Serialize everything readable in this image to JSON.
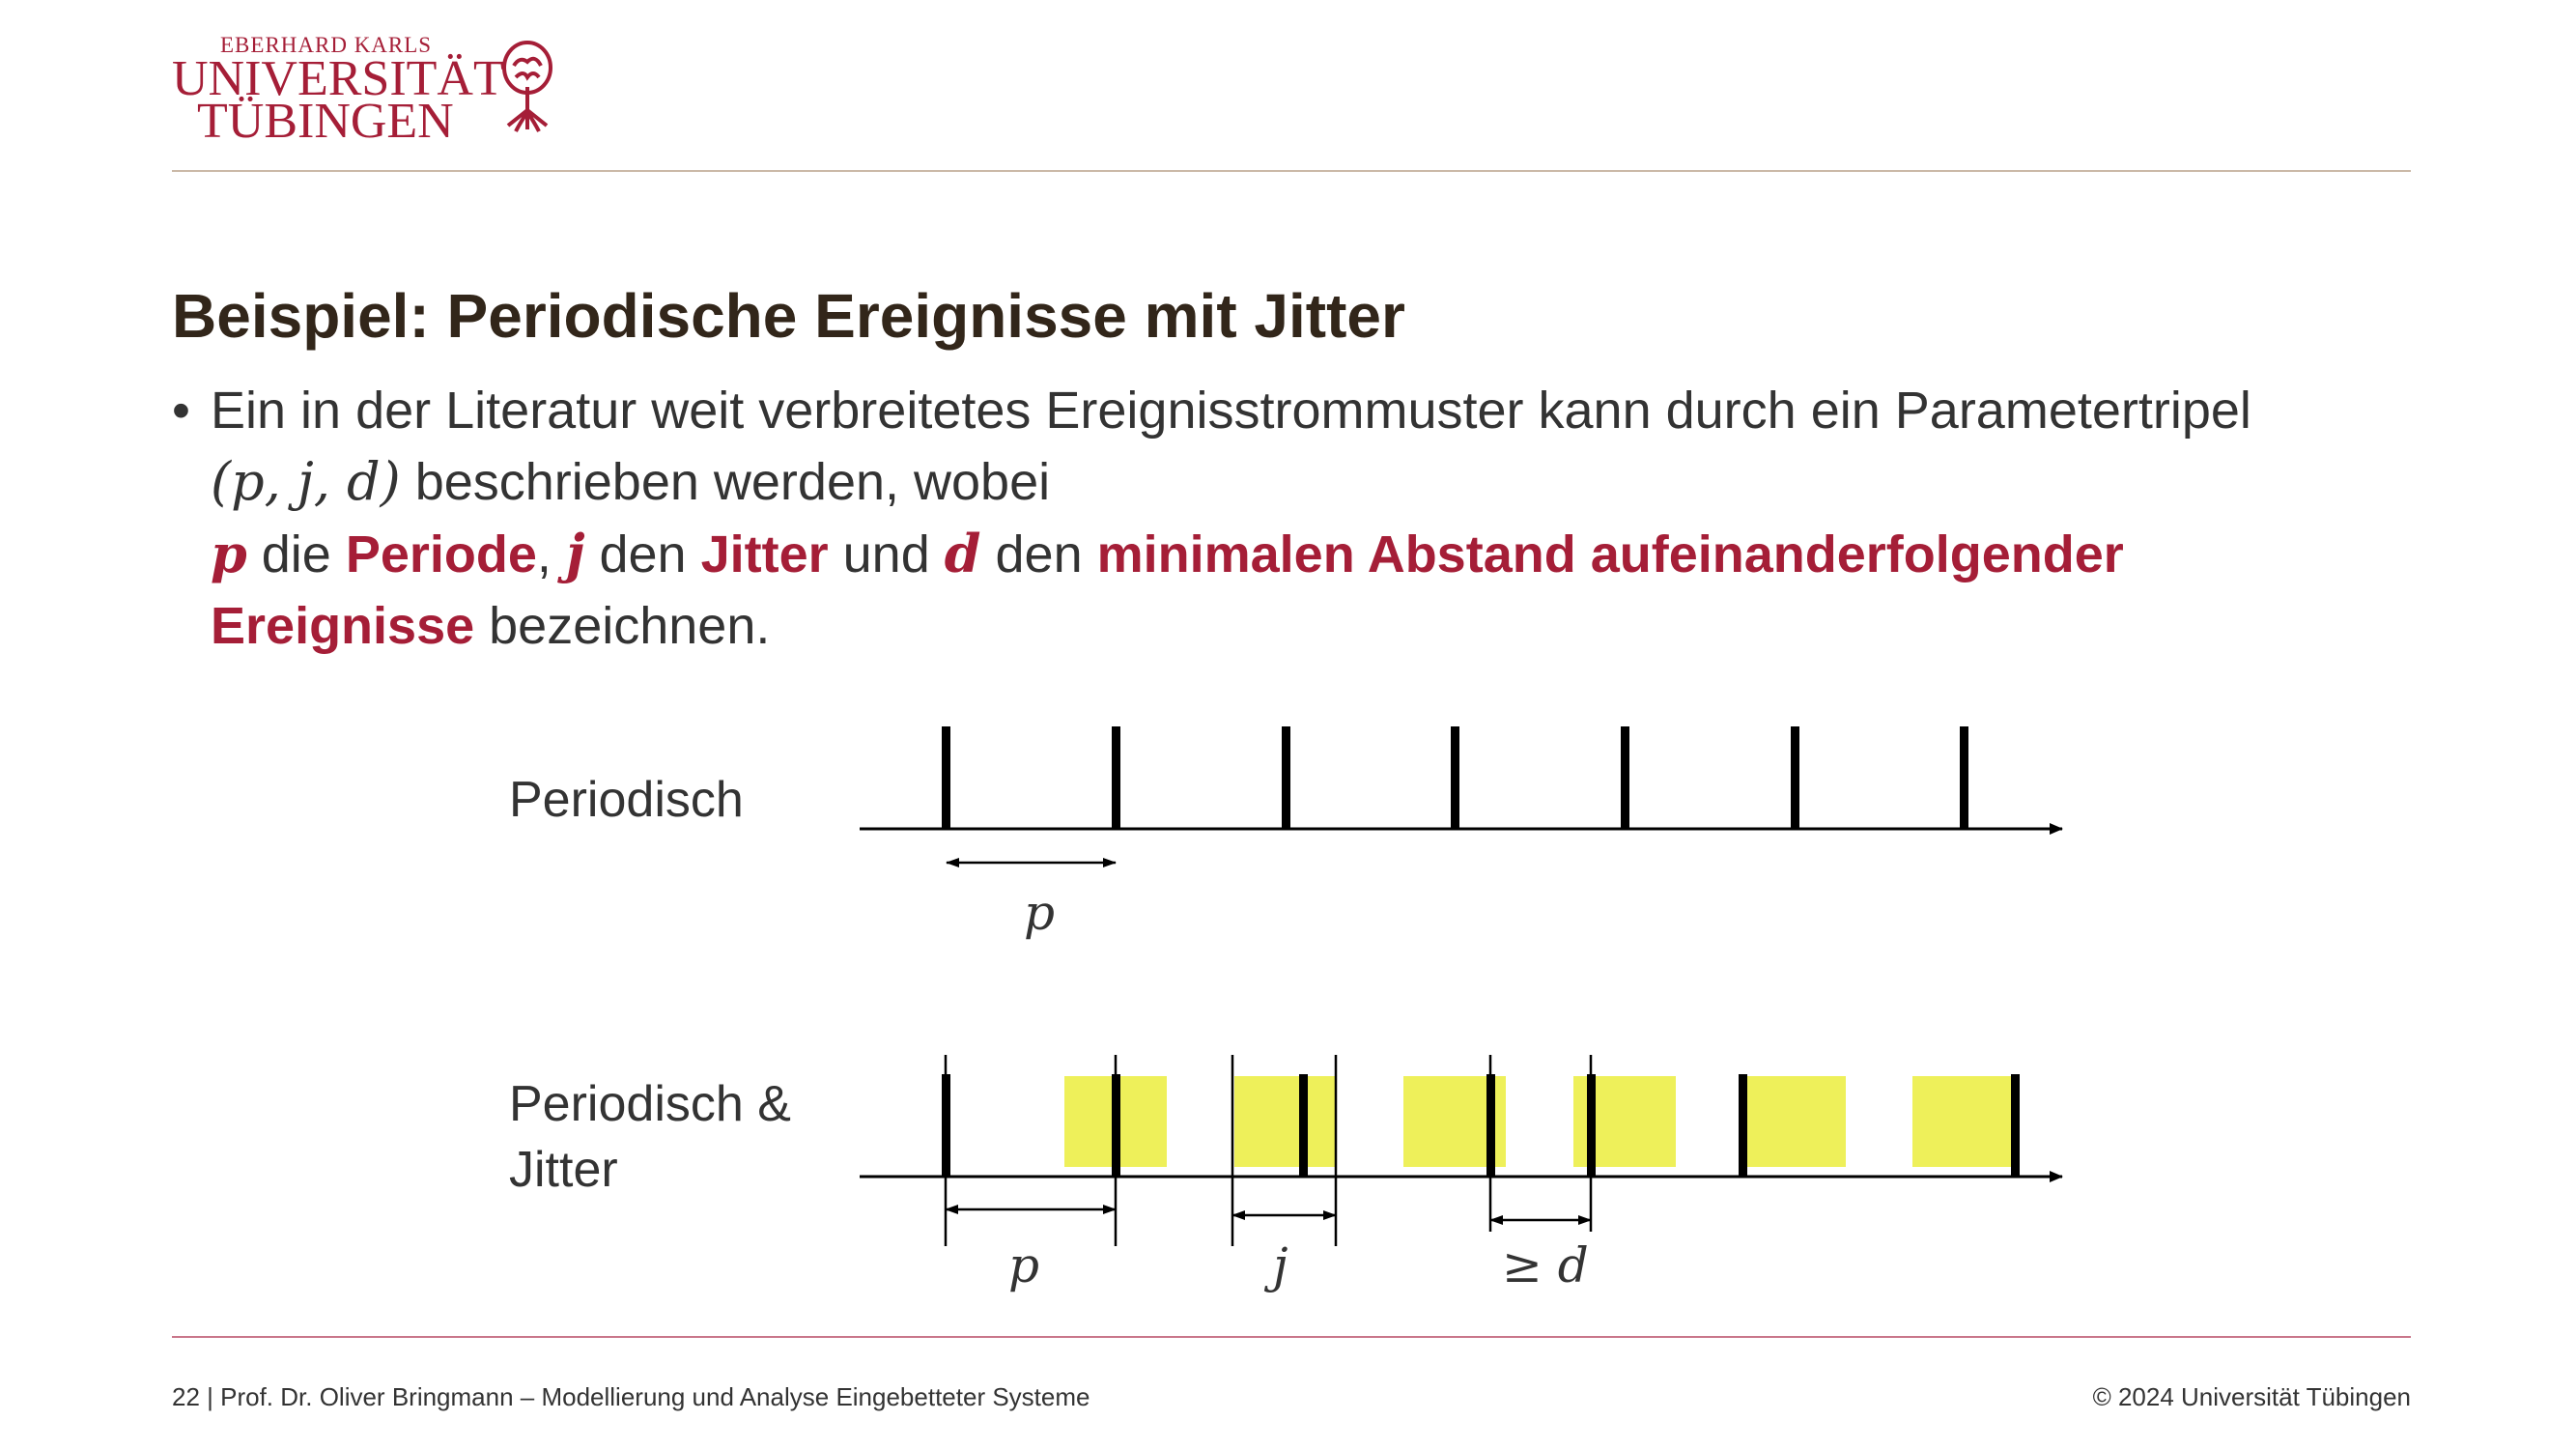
{
  "logo": {
    "line1": "EBERHARD KARLS",
    "line2": "UNIVERSITÄT",
    "line3": "TÜBINGEN",
    "emblem_icon": "tree-emblem-icon",
    "color": "#a51e37"
  },
  "slide": {
    "title": "Beispiel: Periodische Ereignisse mit Jitter",
    "bullet": "•",
    "line1": "Ein in der Literatur weit verbreitetes Ereignisstrommuster kann durch ein Parametertripel",
    "tuple": "(p, j, d)",
    "line2_rest": " beschrieben werden, wobei",
    "p": "p",
    "die": " die ",
    "periode": "Periode",
    "comma": ", ",
    "j": "j",
    "den1": " den ",
    "jitter": "Jitter",
    "und": " und ",
    "d": "d",
    "den2": " den ",
    "minabstand": "minimalen Abstand aufeinanderfolgender",
    "ereignisse": "Ereignisse",
    "bezeichnen": " bezeichnen."
  },
  "diagram": {
    "row1_label": "Periodisch",
    "row2_label_line1": "Periodisch &",
    "row2_label_line2": "Jitter",
    "label_p1": "p",
    "label_p2": "p",
    "label_j": "j",
    "label_d": "≥ d",
    "jitter_color": "#eef05a"
  },
  "footer": {
    "left": "22 | Prof. Dr. Oliver Bringmann – Modellierung und Analyse Eingebetteter Systeme",
    "right": "© 2024 Universität Tübingen"
  }
}
